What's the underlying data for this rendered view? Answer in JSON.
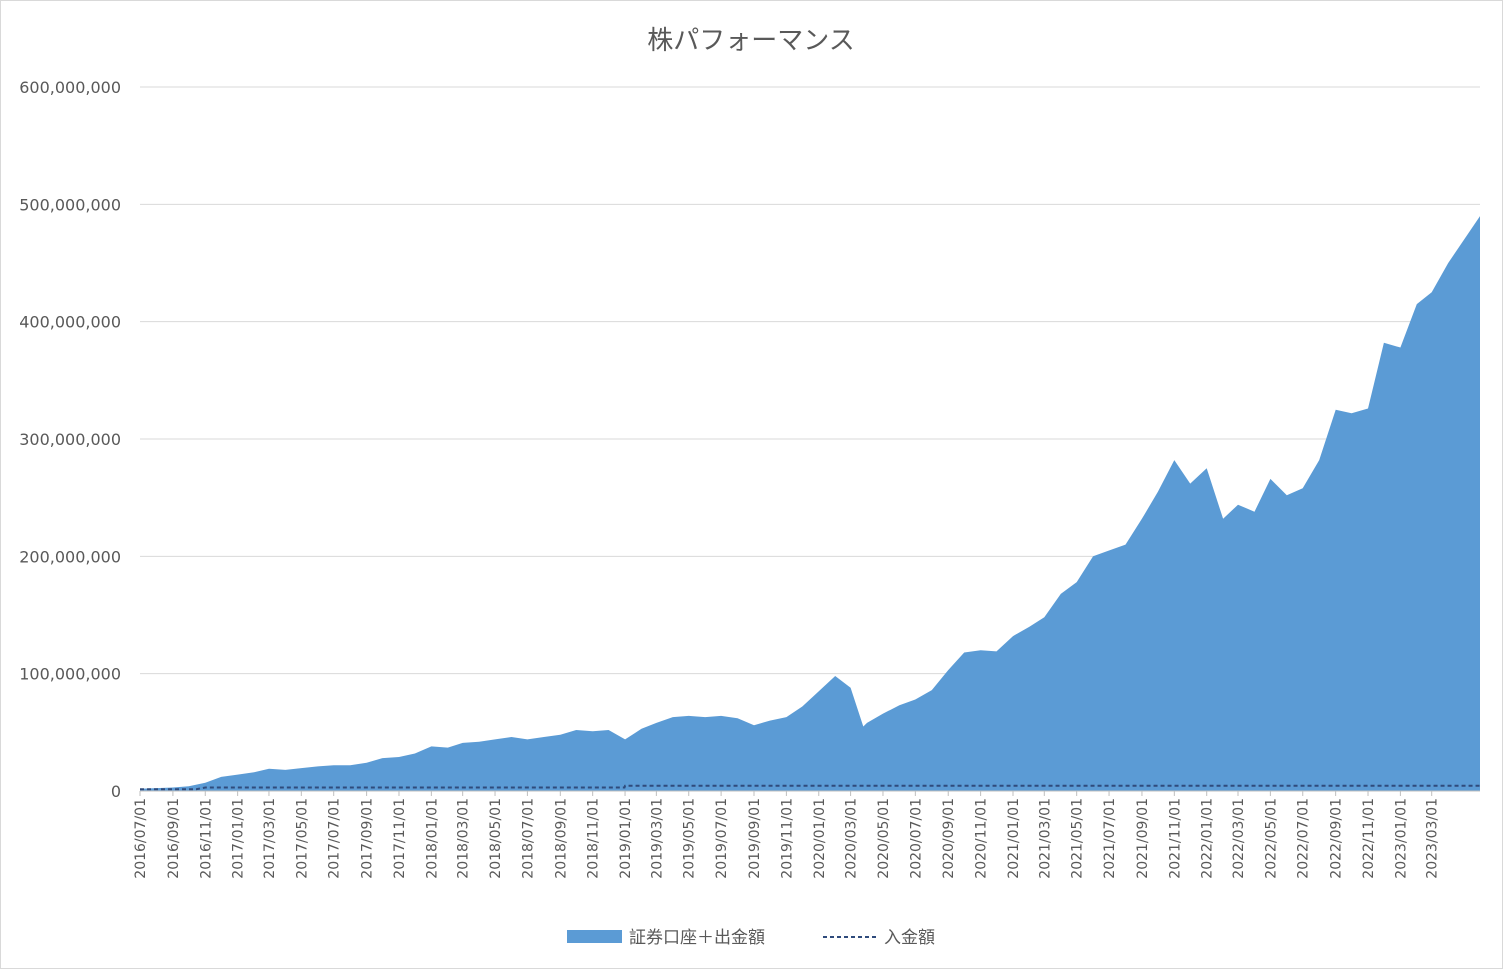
{
  "chart_data": {
    "type": "area",
    "title": "株パフォーマンス",
    "xlabel": "",
    "ylabel": "",
    "ylim": [
      0,
      600000000
    ],
    "y_ticks": [
      {
        "value": 0,
        "label": "0"
      },
      {
        "value": 100000000,
        "label": "100,000,000"
      },
      {
        "value": 200000000,
        "label": "200,000,000"
      },
      {
        "value": 300000000,
        "label": "300,000,000"
      },
      {
        "value": 400000000,
        "label": "400,000,000"
      },
      {
        "value": 500000000,
        "label": "500,000,000"
      },
      {
        "value": 600000000,
        "label": "600,000,000"
      }
    ],
    "x_tick_labels": [
      "2016/07/01",
      "2016/09/01",
      "2016/11/01",
      "2017/01/01",
      "2017/03/01",
      "2017/05/01",
      "2017/07/01",
      "2017/09/01",
      "2017/11/01",
      "2018/01/01",
      "2018/03/01",
      "2018/05/01",
      "2018/07/01",
      "2018/09/01",
      "2018/11/01",
      "2019/01/01",
      "2019/03/01",
      "2019/05/01",
      "2019/07/01",
      "2019/09/01",
      "2019/11/01",
      "2020/01/01",
      "2020/03/01",
      "2020/05/01",
      "2020/07/01",
      "2020/09/01",
      "2020/11/01",
      "2021/01/01",
      "2021/03/01",
      "2021/05/01",
      "2021/07/01",
      "2021/09/01",
      "2021/11/01",
      "2022/01/01",
      "2022/03/01",
      "2022/05/01",
      "2022/07/01",
      "2022/09/01",
      "2022/11/01",
      "2023/01/01",
      "2023/03/01"
    ],
    "x_range": [
      "2016/07/01",
      "2023/05/31"
    ],
    "grid": true,
    "legend_position": "bottom",
    "series": [
      {
        "name": "証券口座＋出金額",
        "style": "area",
        "color": "#5b9bd5",
        "points": [
          [
            "2016/07/01",
            2000000
          ],
          [
            "2016/08/01",
            2500000
          ],
          [
            "2016/09/01",
            3000000
          ],
          [
            "2016/10/01",
            4000000
          ],
          [
            "2016/11/01",
            7000000
          ],
          [
            "2016/12/01",
            12000000
          ],
          [
            "2017/01/01",
            14000000
          ],
          [
            "2017/02/01",
            16000000
          ],
          [
            "2017/03/01",
            19000000
          ],
          [
            "2017/04/01",
            18000000
          ],
          [
            "2017/05/01",
            19500000
          ],
          [
            "2017/06/01",
            21000000
          ],
          [
            "2017/07/01",
            22000000
          ],
          [
            "2017/08/01",
            22000000
          ],
          [
            "2017/09/01",
            24000000
          ],
          [
            "2017/10/01",
            28000000
          ],
          [
            "2017/11/01",
            29000000
          ],
          [
            "2017/12/01",
            32000000
          ],
          [
            "2018/01/01",
            38000000
          ],
          [
            "2018/02/01",
            37000000
          ],
          [
            "2018/03/01",
            41000000
          ],
          [
            "2018/04/01",
            42000000
          ],
          [
            "2018/05/01",
            44000000
          ],
          [
            "2018/06/01",
            46000000
          ],
          [
            "2018/07/01",
            44000000
          ],
          [
            "2018/08/01",
            46000000
          ],
          [
            "2018/09/01",
            48000000
          ],
          [
            "2018/10/01",
            52000000
          ],
          [
            "2018/11/01",
            51000000
          ],
          [
            "2018/12/01",
            52000000
          ],
          [
            "2019/01/01",
            44000000
          ],
          [
            "2019/02/01",
            53000000
          ],
          [
            "2019/03/01",
            58000000
          ],
          [
            "2019/04/01",
            63000000
          ],
          [
            "2019/05/01",
            64000000
          ],
          [
            "2019/06/01",
            63000000
          ],
          [
            "2019/07/01",
            64000000
          ],
          [
            "2019/08/01",
            62000000
          ],
          [
            "2019/09/01",
            56000000
          ],
          [
            "2019/10/01",
            60000000
          ],
          [
            "2019/11/01",
            63000000
          ],
          [
            "2019/12/01",
            72000000
          ],
          [
            "2020/01/01",
            85000000
          ],
          [
            "2020/02/01",
            98000000
          ],
          [
            "2020/03/01",
            88000000
          ],
          [
            "2020/03/25",
            55000000
          ],
          [
            "2020/04/01",
            58000000
          ],
          [
            "2020/05/01",
            66000000
          ],
          [
            "2020/06/01",
            73000000
          ],
          [
            "2020/07/01",
            78000000
          ],
          [
            "2020/08/01",
            86000000
          ],
          [
            "2020/09/01",
            103000000
          ],
          [
            "2020/10/01",
            118000000
          ],
          [
            "2020/11/01",
            120000000
          ],
          [
            "2020/12/01",
            119000000
          ],
          [
            "2021/01/01",
            132000000
          ],
          [
            "2021/02/01",
            140000000
          ],
          [
            "2021/03/01",
            148000000
          ],
          [
            "2021/04/01",
            168000000
          ],
          [
            "2021/05/01",
            178000000
          ],
          [
            "2021/06/01",
            200000000
          ],
          [
            "2021/07/01",
            205000000
          ],
          [
            "2021/08/01",
            210000000
          ],
          [
            "2021/09/01",
            232000000
          ],
          [
            "2021/10/01",
            255000000
          ],
          [
            "2021/11/01",
            282000000
          ],
          [
            "2021/12/01",
            262000000
          ],
          [
            "2022/01/01",
            275000000
          ],
          [
            "2022/02/01",
            232000000
          ],
          [
            "2022/03/01",
            244000000
          ],
          [
            "2022/04/01",
            238000000
          ],
          [
            "2022/05/01",
            266000000
          ],
          [
            "2022/06/01",
            252000000
          ],
          [
            "2022/07/01",
            258000000
          ],
          [
            "2022/08/01",
            282000000
          ],
          [
            "2022/09/01",
            325000000
          ],
          [
            "2022/10/01",
            322000000
          ],
          [
            "2022/11/01",
            326000000
          ],
          [
            "2022/12/01",
            382000000
          ],
          [
            "2023/01/01",
            378000000
          ],
          [
            "2023/02/01",
            415000000
          ],
          [
            "2023/03/01",
            425000000
          ],
          [
            "2023/04/01",
            450000000
          ],
          [
            "2023/05/31",
            490000000
          ]
        ]
      },
      {
        "name": "入金額",
        "style": "dashed-line",
        "color": "#2f4b7c",
        "points": [
          [
            "2016/07/01",
            1500000
          ],
          [
            "2016/10/15",
            1500000
          ],
          [
            "2016/11/01",
            3000000
          ],
          [
            "2018/12/31",
            3000000
          ],
          [
            "2019/01/01",
            4500000
          ],
          [
            "2023/05/31",
            4500000
          ]
        ]
      }
    ]
  }
}
